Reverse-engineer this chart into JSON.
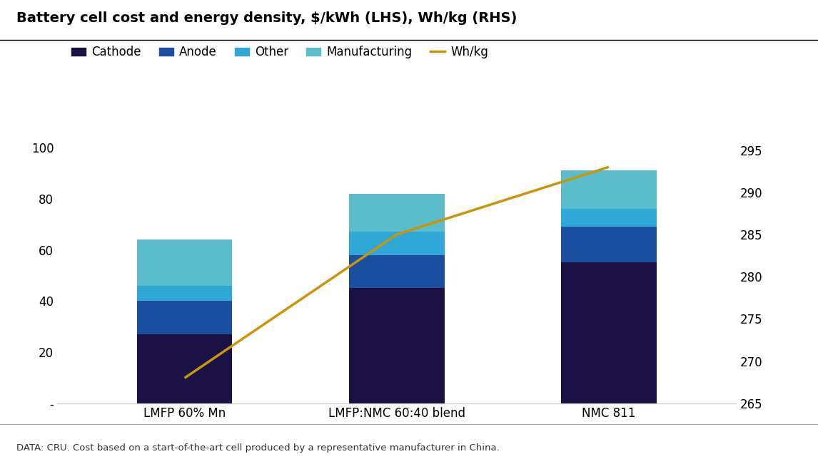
{
  "title": "Battery cell cost and energy density, $/kWh (LHS), Wh/kg (RHS)",
  "categories": [
    "LMFP 60% Mn",
    "LMFP:NMC 60:40 blend",
    "NMC 811"
  ],
  "cathode": [
    27,
    45,
    55
  ],
  "anode": [
    13,
    13,
    14
  ],
  "other": [
    6,
    9,
    7
  ],
  "manufacturing": [
    18,
    15,
    15
  ],
  "wh_kg": [
    268,
    285,
    293
  ],
  "color_cathode": "#1b1145",
  "color_anode": "#1a4fa0",
  "color_other": "#2fa8d8",
  "color_manufacturing": "#5bbccc",
  "color_line": "#c8960c",
  "ylim_left": [
    0,
    110
  ],
  "ylim_right": [
    265,
    298.33
  ],
  "yticks_left": [
    0,
    20,
    40,
    60,
    80,
    100
  ],
  "ytick_labels_left": [
    "-",
    "20",
    "40",
    "60",
    "80",
    "100"
  ],
  "yticks_right": [
    265,
    270,
    275,
    280,
    285,
    290,
    295
  ],
  "ytick_labels_right": [
    "265",
    "270",
    "275",
    "280",
    "285",
    "290",
    "295"
  ],
  "footnote": "DATA: CRU. Cost based on a start-of-the-art cell produced by a representative manufacturer in China.",
  "bar_width": 0.45,
  "background_color": "#ffffff"
}
